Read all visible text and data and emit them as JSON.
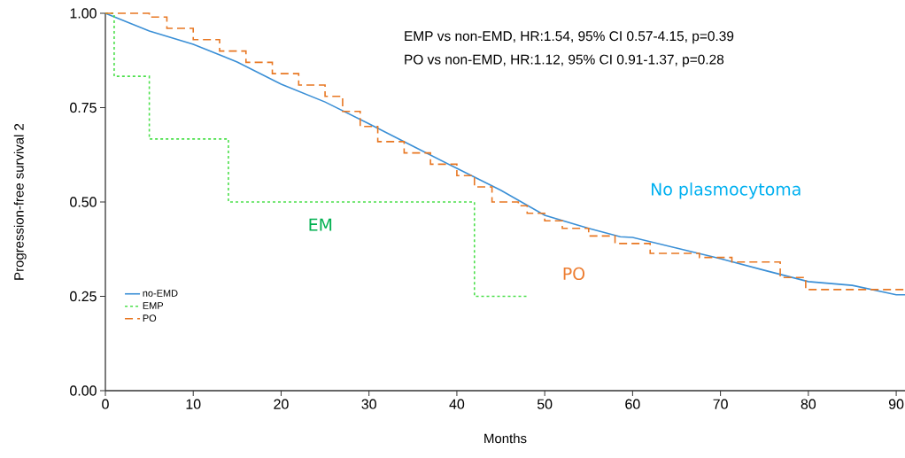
{
  "chart_data": {
    "type": "step",
    "xlabel": "Months",
    "ylabel": "Progression-free survival 2",
    "xlim": [
      0,
      91
    ],
    "ylim": [
      0,
      1
    ],
    "xticks": [
      0,
      10,
      20,
      30,
      40,
      50,
      60,
      70,
      80,
      90
    ],
    "yticks": [
      {
        "value": 0,
        "label": "0.00"
      },
      {
        "value": 0.25,
        "label": "0.25"
      },
      {
        "value": 0.5,
        "label": "0.50"
      },
      {
        "value": 0.75,
        "label": "0.75"
      },
      {
        "value": 1,
        "label": "1.00"
      }
    ],
    "grid": false,
    "legend": "bottom left",
    "marker": "none",
    "series": [
      {
        "name": "no-EMD",
        "type": "line",
        "line_style": "solid",
        "color": "#3a8fd6",
        "x": [
          0,
          5,
          10,
          15,
          20,
          25,
          30,
          35,
          40,
          45,
          50,
          55,
          58.6,
          60,
          65,
          70,
          75,
          80,
          85,
          90,
          91
        ],
        "values": [
          1.0,
          0.953,
          0.918,
          0.871,
          0.812,
          0.765,
          0.707,
          0.648,
          0.589,
          0.531,
          0.465,
          0.43,
          0.408,
          0.406,
          0.378,
          0.35,
          0.319,
          0.289,
          0.279,
          0.254,
          0.254
        ]
      },
      {
        "name": "EMP",
        "line_style": "dotted",
        "color": "#4be04b",
        "x": [
          0,
          1,
          5,
          14,
          42,
          48
        ],
        "values": [
          1.0,
          0.833,
          0.667,
          0.5,
          0.25,
          0.25
        ]
      },
      {
        "name": "PO",
        "line_style": "dashed",
        "color": "#e87722",
        "x": [
          0,
          5,
          7,
          10,
          13,
          16,
          19,
          22,
          25,
          27,
          29,
          31,
          34,
          37,
          40,
          42,
          44,
          47,
          48,
          50,
          52,
          55,
          58,
          62,
          67.6,
          71.3,
          76.8,
          79.7,
          91
        ],
        "values": [
          1.0,
          0.99,
          0.96,
          0.93,
          0.9,
          0.87,
          0.84,
          0.81,
          0.78,
          0.74,
          0.7,
          0.66,
          0.63,
          0.6,
          0.57,
          0.54,
          0.5,
          0.49,
          0.47,
          0.45,
          0.43,
          0.41,
          0.39,
          0.364,
          0.353,
          0.341,
          0.3,
          0.268,
          0.268
        ]
      }
    ],
    "annotations": [
      "EMP vs non-EMD, HR:1.54, 95% CI 0.57-4.15, p=0.39",
      "PO vs non-EMD, HR:1.12, 95% CI 0.91-1.37, p=0.28",
      "No plasmocytoma",
      "EM",
      "PO"
    ]
  }
}
